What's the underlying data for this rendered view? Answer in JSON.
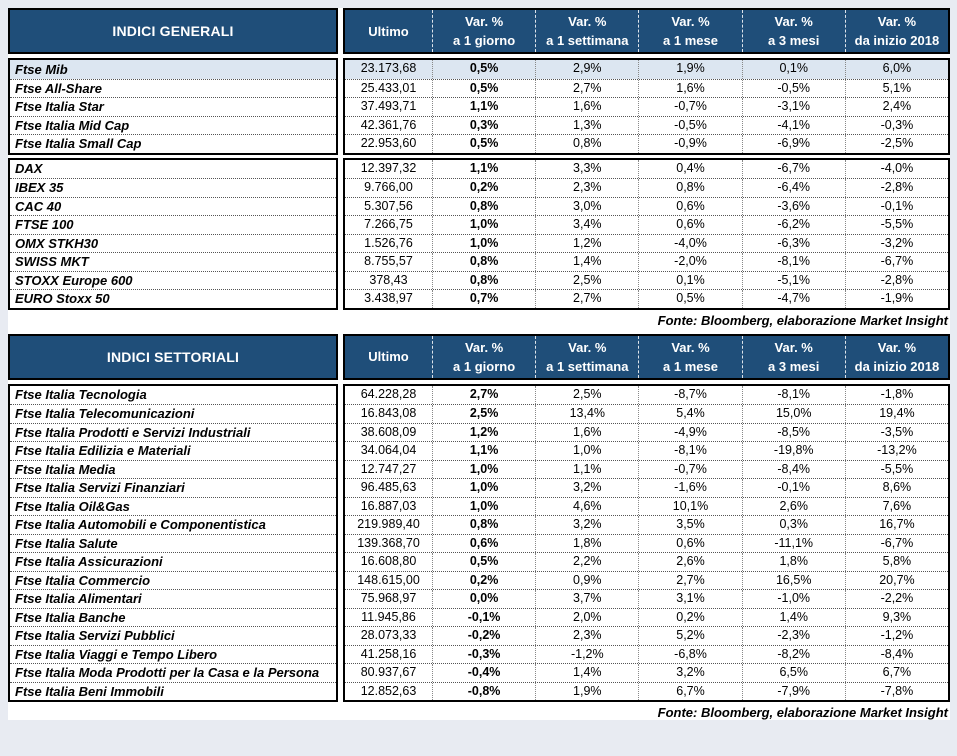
{
  "theme": {
    "header_bg": "#1F4E79",
    "header_text": "#FFFFFF",
    "highlight_row_bg": "#DCE6F1",
    "page_margin_bg": "#E8EBF2",
    "sheet_bg": "#FFFFFF",
    "border_color": "#000000"
  },
  "columns": [
    {
      "l1": "Ultimo",
      "l2": ""
    },
    {
      "l1": "Var. %",
      "l2": "a 1 giorno"
    },
    {
      "l1": "Var. %",
      "l2": "a 1 settimana"
    },
    {
      "l1": "Var. %",
      "l2": "a 1 mese"
    },
    {
      "l1": "Var. %",
      "l2": "a 3 mesi"
    },
    {
      "l1": "Var. %",
      "l2": "da inizio 2018"
    }
  ],
  "tables": [
    {
      "title": "INDICI GENERALI",
      "fonte": "Fonte: Bloomberg, elaborazione Market Insight",
      "groups": [
        {
          "rows": [
            {
              "label": "Ftse Mib",
              "highlight": true,
              "values": [
                "23.173,68",
                "0,5%",
                "2,9%",
                "1,9%",
                "0,1%",
                "6,0%"
              ]
            },
            {
              "label": "Ftse All-Share",
              "values": [
                "25.433,01",
                "0,5%",
                "2,7%",
                "1,6%",
                "-0,5%",
                "5,1%"
              ]
            },
            {
              "label": "Ftse Italia Star",
              "values": [
                "37.493,71",
                "1,1%",
                "1,6%",
                "-0,7%",
                "-3,1%",
                "2,4%"
              ]
            },
            {
              "label": "Ftse Italia Mid Cap",
              "values": [
                "42.361,76",
                "0,3%",
                "1,3%",
                "-0,5%",
                "-4,1%",
                "-0,3%"
              ]
            },
            {
              "label": "Ftse Italia Small Cap",
              "values": [
                "22.953,60",
                "0,5%",
                "0,8%",
                "-0,9%",
                "-6,9%",
                "-2,5%"
              ]
            }
          ]
        },
        {
          "rows": [
            {
              "label": "DAX",
              "values": [
                "12.397,32",
                "1,1%",
                "3,3%",
                "0,4%",
                "-6,7%",
                "-4,0%"
              ]
            },
            {
              "label": "IBEX 35",
              "values": [
                "9.766,00",
                "0,2%",
                "2,3%",
                "0,8%",
                "-6,4%",
                "-2,8%"
              ]
            },
            {
              "label": "CAC 40",
              "values": [
                "5.307,56",
                "0,8%",
                "3,0%",
                "0,6%",
                "-3,6%",
                "-0,1%"
              ]
            },
            {
              "label": "FTSE 100",
              "values": [
                "7.266,75",
                "1,0%",
                "3,4%",
                "0,6%",
                "-6,2%",
                "-5,5%"
              ]
            },
            {
              "label": "OMX STKH30",
              "values": [
                "1.526,76",
                "1,0%",
                "1,2%",
                "-4,0%",
                "-6,3%",
                "-3,2%"
              ]
            },
            {
              "label": "SWISS MKT",
              "values": [
                "8.755,57",
                "0,8%",
                "1,4%",
                "-2,0%",
                "-8,1%",
                "-6,7%"
              ]
            },
            {
              "label": "STOXX Europe 600",
              "values": [
                "378,43",
                "0,8%",
                "2,5%",
                "0,1%",
                "-5,1%",
                "-2,8%"
              ]
            },
            {
              "label": "EURO Stoxx 50",
              "values": [
                "3.438,97",
                "0,7%",
                "2,7%",
                "0,5%",
                "-4,7%",
                "-1,9%"
              ]
            }
          ]
        }
      ]
    },
    {
      "title": "INDICI SETTORIALI",
      "fonte": "Fonte: Bloomberg, elaborazione Market Insight",
      "groups": [
        {
          "rows": [
            {
              "label": "Ftse Italia Tecnologia",
              "values": [
                "64.228,28",
                "2,7%",
                "2,5%",
                "-8,7%",
                "-8,1%",
                "-1,8%"
              ]
            },
            {
              "label": "Ftse Italia Telecomunicazioni",
              "values": [
                "16.843,08",
                "2,5%",
                "13,4%",
                "5,4%",
                "15,0%",
                "19,4%"
              ]
            },
            {
              "label": "Ftse Italia Prodotti e Servizi Industriali",
              "values": [
                "38.608,09",
                "1,2%",
                "1,6%",
                "-4,9%",
                "-8,5%",
                "-3,5%"
              ]
            },
            {
              "label": "Ftse Italia Edilizia e Materiali",
              "values": [
                "34.064,04",
                "1,1%",
                "1,0%",
                "-8,1%",
                "-19,8%",
                "-13,2%"
              ]
            },
            {
              "label": "Ftse Italia Media",
              "values": [
                "12.747,27",
                "1,0%",
                "1,1%",
                "-0,7%",
                "-8,4%",
                "-5,5%"
              ]
            },
            {
              "label": "Ftse Italia Servizi Finanziari",
              "values": [
                "96.485,63",
                "1,0%",
                "3,2%",
                "-1,6%",
                "-0,1%",
                "8,6%"
              ]
            },
            {
              "label": "Ftse Italia Oil&Gas",
              "values": [
                "16.887,03",
                "1,0%",
                "4,6%",
                "10,1%",
                "2,6%",
                "7,6%"
              ]
            },
            {
              "label": "Ftse Italia Automobili e Componentistica",
              "values": [
                "219.989,40",
                "0,8%",
                "3,2%",
                "3,5%",
                "0,3%",
                "16,7%"
              ]
            },
            {
              "label": "Ftse Italia Salute",
              "values": [
                "139.368,70",
                "0,6%",
                "1,8%",
                "0,6%",
                "-11,1%",
                "-6,7%"
              ]
            },
            {
              "label": "Ftse Italia Assicurazioni",
              "values": [
                "16.608,80",
                "0,5%",
                "2,2%",
                "2,6%",
                "1,8%",
                "5,8%"
              ]
            },
            {
              "label": "Ftse Italia Commercio",
              "values": [
                "148.615,00",
                "0,2%",
                "0,9%",
                "2,7%",
                "16,5%",
                "20,7%"
              ]
            },
            {
              "label": "Ftse Italia Alimentari",
              "values": [
                "75.968,97",
                "0,0%",
                "3,7%",
                "3,1%",
                "-1,0%",
                "-2,2%"
              ]
            },
            {
              "label": "Ftse Italia Banche",
              "values": [
                "11.945,86",
                "-0,1%",
                "2,0%",
                "0,2%",
                "1,4%",
                "9,3%"
              ]
            },
            {
              "label": "Ftse Italia Servizi Pubblici",
              "values": [
                "28.073,33",
                "-0,2%",
                "2,3%",
                "5,2%",
                "-2,3%",
                "-1,2%"
              ]
            },
            {
              "label": "Ftse Italia Viaggi e Tempo Libero",
              "values": [
                "41.258,16",
                "-0,3%",
                "-1,2%",
                "-6,8%",
                "-8,2%",
                "-8,4%"
              ]
            },
            {
              "label": "Ftse Italia Moda Prodotti per la Casa e la Persona",
              "values": [
                "80.937,67",
                "-0,4%",
                "1,4%",
                "3,2%",
                "6,5%",
                "6,7%"
              ]
            },
            {
              "label": "Ftse Italia Beni Immobili",
              "values": [
                "12.852,63",
                "-0,8%",
                "1,9%",
                "6,7%",
                "-7,9%",
                "-7,8%"
              ]
            }
          ]
        }
      ]
    }
  ]
}
